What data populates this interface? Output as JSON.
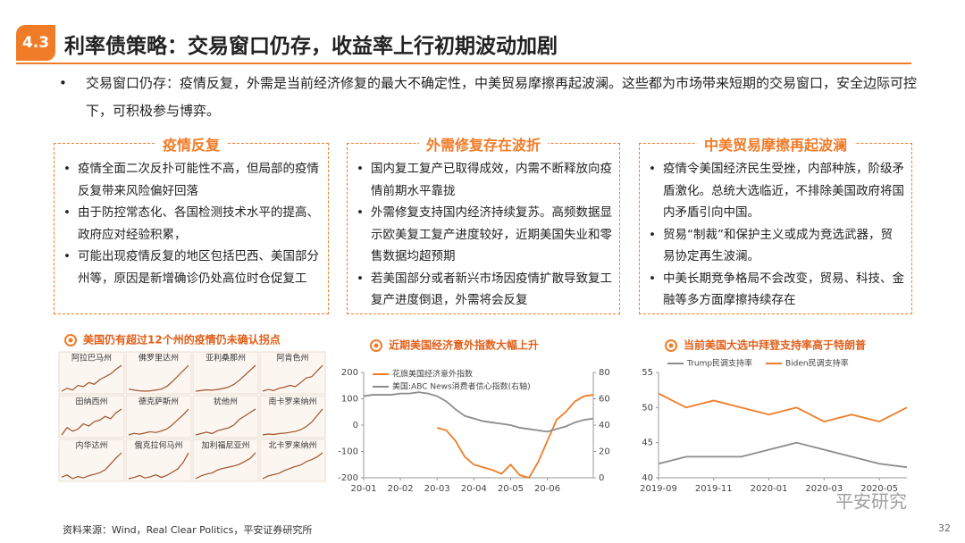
{
  "header": {
    "badge": "4.3",
    "title": "利率债策略：交易窗口仍存，收益率上行初期波动加剧"
  },
  "intro": "交易窗口仍存：疫情反复，外需是当前经济修复的最大不确定性，中美贸易摩擦再起波澜。这些都为市场带来短期的交易窗口，安全边际可控下，可积极参与博弈。",
  "boxes": [
    {
      "title": "疫情反复",
      "items": [
        "疫情全面二次反扑可能性不高，但局部的疫情反复带来风险偏好回落",
        "由于防控常态化、各国检测技术水平的提高、政府应对经验积累，",
        "可能出现疫情反复的地区包括巴西、美国部分州等，原因是新增确诊仍处高位时仓促复工"
      ]
    },
    {
      "title": "外需修复存在波折",
      "items": [
        "国内复工复产已取得成效，内需不断释放向疫情前期水平靠拢",
        "外需修复支持国内经济持续复苏。高频数据显示欧美复工复产进度较好，近期美国失业和零售数据均超预期",
        "若美国部分或者新兴市场因疫情扩散导致复工复产进度倒退，外需将会反复"
      ]
    },
    {
      "title": "中美贸易摩擦再起波澜",
      "items": [
        "疫情令美国经济民生受挫，内部种族，阶级矛盾激化。总统大选临近，不排除美国政府将国内矛盾引向中国。",
        "贸易“制裁”和保护主义或成为竞选武器，贸易协定再生波澜。",
        "中美长期竞争格局不会改变，贸易、科技、金融等多方面摩擦持续存在"
      ]
    }
  ],
  "chart_data": [
    {
      "type": "small-multiples",
      "title": "美国仍有超过12个州的疫情仍未确认拐点",
      "color": "#a0522d",
      "panels": [
        {
          "name": "阿拉巴马州",
          "values": [
            10,
            15,
            12,
            20,
            18,
            25,
            22,
            30,
            35,
            40,
            48,
            55
          ]
        },
        {
          "name": "佛罗里达州",
          "values": [
            15,
            12,
            10,
            9,
            10,
            12,
            15,
            22,
            35,
            50,
            65,
            80
          ]
        },
        {
          "name": "亚利桑那州",
          "values": [
            8,
            10,
            12,
            11,
            13,
            16,
            20,
            28,
            40,
            55,
            70,
            85
          ]
        },
        {
          "name": "阿肯色州",
          "values": [
            5,
            8,
            6,
            10,
            12,
            15,
            13,
            20,
            28,
            30,
            40,
            50
          ]
        },
        {
          "name": "田纳西州",
          "values": [
            10,
            20,
            15,
            18,
            25,
            22,
            28,
            30,
            35,
            32,
            40,
            45
          ]
        },
        {
          "name": "德克萨斯州",
          "values": [
            10,
            14,
            12,
            15,
            18,
            16,
            20,
            25,
            35,
            48,
            60,
            75
          ]
        },
        {
          "name": "犹他州",
          "values": [
            8,
            10,
            12,
            10,
            14,
            16,
            18,
            22,
            30,
            35,
            40,
            45
          ]
        },
        {
          "name": "南卡罗来纳州",
          "values": [
            6,
            8,
            7,
            9,
            10,
            12,
            14,
            18,
            25,
            35,
            50,
            65
          ]
        },
        {
          "name": "内华达州",
          "values": [
            12,
            15,
            10,
            13,
            11,
            14,
            16,
            18,
            22,
            30,
            38,
            45
          ]
        },
        {
          "name": "俄克拉何马州",
          "values": [
            10,
            12,
            15,
            11,
            13,
            16,
            12,
            15,
            20,
            25,
            35,
            50
          ]
        },
        {
          "name": "加利福尼亚州",
          "values": [
            10,
            15,
            18,
            20,
            25,
            28,
            30,
            32,
            35,
            40,
            45,
            55
          ]
        },
        {
          "name": "北卡罗来纳州",
          "values": [
            10,
            14,
            16,
            18,
            22,
            25,
            28,
            30,
            35,
            38,
            42,
            48
          ]
        }
      ]
    },
    {
      "type": "line",
      "title": "近期美国经济意外指数大幅上升",
      "legend": "top-left",
      "categories": [
        "20-01",
        null,
        null,
        null,
        "20-02",
        null,
        null,
        null,
        "20-03",
        null,
        null,
        null,
        "20-04",
        null,
        null,
        null,
        "20-05",
        null,
        null,
        null,
        "20-06",
        null,
        null,
        null,
        null,
        null
      ],
      "ylim": [
        -200,
        200
      ],
      "yticks": [
        -200,
        -100,
        0,
        100,
        200
      ],
      "y2lim": [
        0,
        80
      ],
      "y2ticks": [
        0,
        20,
        40,
        60,
        80
      ],
      "series": [
        {
          "name": "花旗美国经济意外指数",
          "color": "#f07c28",
          "values": [
            null,
            null,
            null,
            null,
            null,
            null,
            null,
            null,
            -10,
            -20,
            -60,
            -120,
            -150,
            -160,
            -170,
            -185,
            -150,
            -190,
            -200,
            -140,
            -60,
            20,
            50,
            90,
            110,
            115
          ]
        },
        {
          "name": "美国:ABC News消费者信心指数(右轴)",
          "color": "#8c8c8c",
          "axis": "y2",
          "values": [
            62,
            63,
            63,
            63,
            64,
            64,
            65,
            64,
            62,
            58,
            52,
            47,
            45,
            43,
            42,
            41,
            40,
            38,
            37,
            36,
            35,
            37,
            39,
            42,
            44,
            45
          ]
        }
      ]
    },
    {
      "type": "line",
      "title": "当前美国大选中拜登支持率高于特朗普",
      "legend": "top",
      "categories": [
        "2019-09",
        null,
        "2019-11",
        null,
        "2020-01",
        null,
        "2020-03",
        null,
        "2020-05",
        null
      ],
      "ylim": [
        40,
        55
      ],
      "yticks": [
        40,
        45,
        50,
        55
      ],
      "series": [
        {
          "name": "Trump民调支持率",
          "color": "#8c8c8c",
          "values": [
            42,
            43,
            43,
            43,
            44,
            45,
            44,
            43,
            42,
            41.5
          ]
        },
        {
          "name": "Biden民调支持率",
          "color": "#f07c28",
          "values": [
            52,
            50,
            51,
            50,
            49,
            50,
            48,
            49,
            48,
            50
          ]
        }
      ]
    }
  ],
  "watermark": "平安研究",
  "footer": {
    "source": "资料来源：Wind，Real Clear Politics，平安证券研究所",
    "page": "32"
  }
}
